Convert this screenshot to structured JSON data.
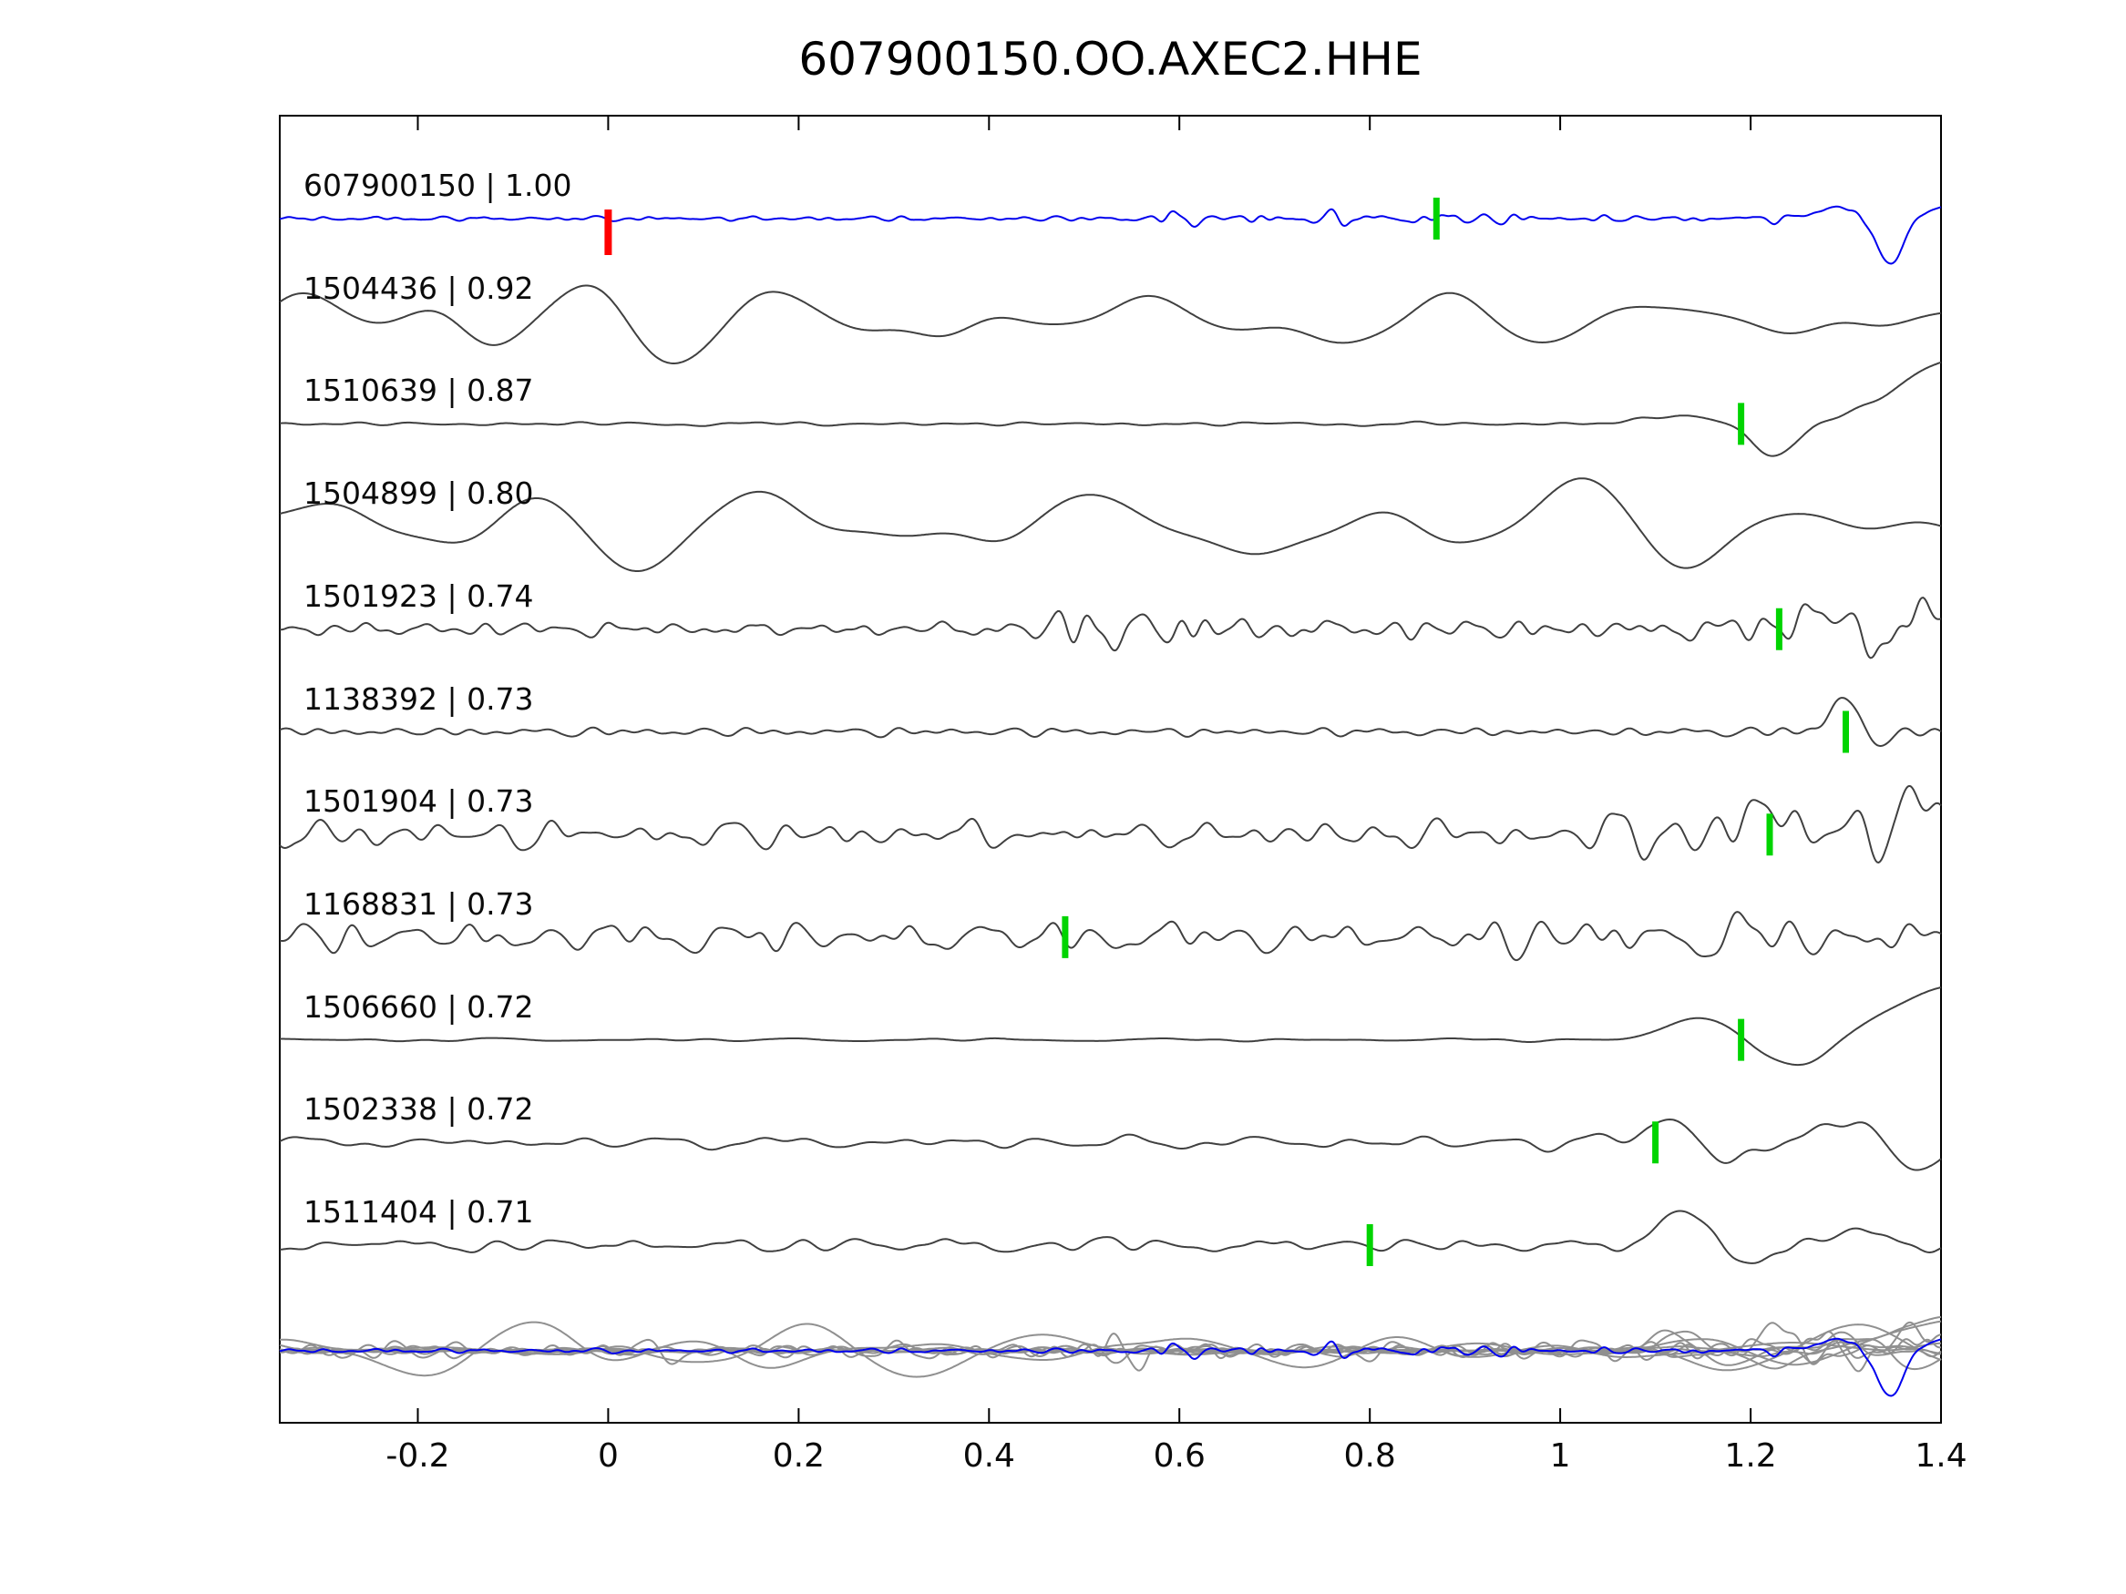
{
  "page": {
    "background": "#ffffff"
  },
  "chart_data": {
    "type": "line",
    "title": "607900150.OO.AXEC2.HHE",
    "description": "Stacked seismic waveform cross-correlation comparison; reference trace on top (blue), candidate matching traces below (dark gray) each labeled 'id | correlation', with pick-time markers (red = reference pick at 0, green = matched picks), and an overlay of all traces at the bottom (gray with blue reference).",
    "x_range": [
      -0.345,
      1.4
    ],
    "x_ticks": [
      -0.2,
      0,
      0.2,
      0.4,
      0.6,
      0.8,
      1,
      1.2,
      1.4
    ],
    "x_tick_labels": [
      "-0.2",
      "0",
      "0.2",
      "0.4",
      "0.6",
      "0.8",
      "1",
      "1.2",
      "1.4"
    ],
    "grid": false,
    "legend_position": "none",
    "colors": {
      "reference_trace": "#0000ee",
      "match_trace": "#404040",
      "overlay_trace": "#909090",
      "pick_green": "#00d400",
      "pick_red": "#ff0000",
      "axis": "#000000"
    },
    "traces": [
      {
        "id": "607900150",
        "correlation": "1.00",
        "label": "607900150 | 1.00",
        "role": "reference",
        "pick_red": 0.0,
        "pick_green": 0.87,
        "shape": {
          "seed": 11,
          "bands": [
            [
              26,
              2.2
            ],
            [
              44,
              1.2
            ],
            [
              14,
              1.2
            ]
          ],
          "env": [
            [
              -0.345,
              0.55
            ],
            [
              0.5,
              0.6
            ],
            [
              0.58,
              1.6
            ],
            [
              0.92,
              1.5
            ],
            [
              1.02,
              0.9
            ],
            [
              1.4,
              0.85
            ]
          ],
          "features": [
            [
              1.29,
              0.03,
              12
            ],
            [
              1.347,
              0.02,
              -50
            ],
            [
              1.39,
              0.022,
              12
            ]
          ]
        }
      },
      {
        "id": "1504436",
        "correlation": "0.92",
        "label": "1504436 | 0.92",
        "role": "match",
        "pick_green": null,
        "shape": {
          "seed": 21,
          "bands": [
            [
              4.6,
              26
            ],
            [
              2.4,
              12
            ],
            [
              8.5,
              3
            ]
          ],
          "env": [
            [
              -0.345,
              1.15
            ],
            [
              0.3,
              1.0
            ],
            [
              0.75,
              0.75
            ],
            [
              1.1,
              0.55
            ],
            [
              1.4,
              0.8
            ]
          ],
          "features": [
            [
              1.395,
              0.05,
              25
            ]
          ]
        }
      },
      {
        "id": "1510639",
        "correlation": "0.87",
        "label": "1510639 | 0.87",
        "role": "match",
        "pick_green": 1.19,
        "shape": {
          "seed": 31,
          "bands": [
            [
              18,
              1.1
            ],
            [
              6,
              0.9
            ]
          ],
          "env": [
            [
              -0.345,
              1
            ],
            [
              1.4,
              1
            ]
          ],
          "features": [
            [
              1.12,
              0.05,
              9
            ],
            [
              1.225,
              0.032,
              -36
            ],
            [
              1.42,
              0.09,
              70
            ]
          ]
        }
      },
      {
        "id": "1504899",
        "correlation": "0.80",
        "label": "1504899 | 0.80",
        "role": "match",
        "pick_green": null,
        "shape": {
          "seed": 41,
          "bands": [
            [
              3.8,
              30
            ],
            [
              1.9,
              9
            ],
            [
              7.5,
              4
            ]
          ],
          "env": [
            [
              -0.345,
              1.05
            ],
            [
              1.1,
              1.0
            ],
            [
              1.3,
              0.75
            ],
            [
              1.4,
              0.8
            ]
          ],
          "features": []
        }
      },
      {
        "id": "1501923",
        "correlation": "0.74",
        "label": "1501923 | 0.74",
        "role": "match",
        "pick_green": 1.23,
        "shape": {
          "seed": 51,
          "bands": [
            [
              21,
              4.5
            ],
            [
              33,
              2.5
            ],
            [
              10,
              2.5
            ]
          ],
          "env": [
            [
              -0.345,
              0.8
            ],
            [
              0.4,
              0.85
            ],
            [
              0.46,
              3.0
            ],
            [
              0.62,
              2.8
            ],
            [
              0.7,
              1.15
            ],
            [
              1.12,
              1.2
            ],
            [
              1.24,
              2.6
            ],
            [
              1.4,
              3.1
            ]
          ],
          "features": [
            [
              1.275,
              0.028,
              26
            ],
            [
              1.33,
              0.03,
              -22
            ],
            [
              1.385,
              0.03,
              26
            ]
          ]
        }
      },
      {
        "id": "1138392",
        "correlation": "0.73",
        "label": "1138392 | 0.73",
        "role": "match",
        "pick_green": 1.3,
        "shape": {
          "seed": 61,
          "bands": [
            [
              26,
              2.6
            ],
            [
              13,
              1.6
            ]
          ],
          "env": [
            [
              -0.345,
              1
            ],
            [
              1.15,
              1
            ],
            [
              1.3,
              1.6
            ],
            [
              1.4,
              1.3
            ]
          ],
          "features": [
            [
              1.298,
              0.02,
              40
            ],
            [
              1.33,
              0.02,
              -14
            ]
          ]
        }
      },
      {
        "id": "1501904",
        "correlation": "0.73",
        "label": "1501904 | 0.73",
        "role": "match",
        "pick_green": 1.22,
        "shape": {
          "seed": 71,
          "bands": [
            [
              17,
              8
            ],
            [
              28,
              3.5
            ],
            [
              8,
              3.5
            ]
          ],
          "env": [
            [
              -0.345,
              1
            ],
            [
              0.95,
              1.05
            ],
            [
              1.08,
              2.0
            ],
            [
              1.3,
              2.2
            ],
            [
              1.4,
              1.5
            ]
          ],
          "features": [
            [
              1.215,
              0.025,
              36
            ],
            [
              1.375,
              0.03,
              40
            ]
          ]
        }
      },
      {
        "id": "1168831",
        "correlation": "0.73",
        "label": "1168831 | 0.73",
        "role": "match",
        "pick_green": 0.48,
        "shape": {
          "seed": 81,
          "bands": [
            [
              16,
              10
            ],
            [
              27,
              4.5
            ],
            [
              7,
              4.5
            ]
          ],
          "env": [
            [
              -0.345,
              1
            ],
            [
              0.85,
              1.05
            ],
            [
              1.0,
              1.45
            ],
            [
              1.3,
              1.35
            ],
            [
              1.4,
              1.0
            ]
          ],
          "features": []
        }
      },
      {
        "id": "1506660",
        "correlation": "0.72",
        "label": "1506660 | 0.72",
        "role": "match",
        "pick_green": 1.19,
        "shape": {
          "seed": 91,
          "bands": [
            [
              6,
              1.1
            ],
            [
              14,
              0.7
            ]
          ],
          "env": [
            [
              -0.345,
              1
            ],
            [
              1.4,
              1
            ]
          ],
          "features": [
            [
              1.15,
              0.05,
              24
            ],
            [
              1.25,
              0.05,
              -32
            ],
            [
              1.42,
              0.1,
              60
            ]
          ]
        }
      },
      {
        "id": "1502338",
        "correlation": "0.72",
        "label": "1502338 | 0.72",
        "role": "match",
        "pick_green": 1.1,
        "shape": {
          "seed": 101,
          "bands": [
            [
              8.5,
              4.5
            ],
            [
              18,
              2.2
            ]
          ],
          "env": [
            [
              -0.345,
              0.85
            ],
            [
              0.85,
              1.0
            ],
            [
              1.0,
              1.25
            ],
            [
              1.4,
              1.5
            ]
          ],
          "features": [
            [
              1.115,
              0.028,
              34
            ],
            [
              1.175,
              0.028,
              -28
            ],
            [
              1.3,
              0.04,
              26
            ],
            [
              1.37,
              0.033,
              -30
            ]
          ]
        }
      },
      {
        "id": "1511404",
        "correlation": "0.71",
        "label": "1511404 | 0.71",
        "role": "match",
        "pick_green": 0.8,
        "shape": {
          "seed": 111,
          "bands": [
            [
              13,
              4.5
            ],
            [
              23,
              1.8
            ],
            [
              5.5,
              2.8
            ]
          ],
          "env": [
            [
              -0.345,
              0.75
            ],
            [
              0.4,
              1.0
            ],
            [
              1.4,
              1.0
            ]
          ],
          "features": [
            [
              1.13,
              0.03,
              38
            ],
            [
              1.205,
              0.04,
              -12
            ],
            [
              1.31,
              0.035,
              15
            ]
          ]
        }
      }
    ],
    "overlay": {
      "includes_reference": true,
      "match_amplitude_scale": 0.55
    }
  }
}
